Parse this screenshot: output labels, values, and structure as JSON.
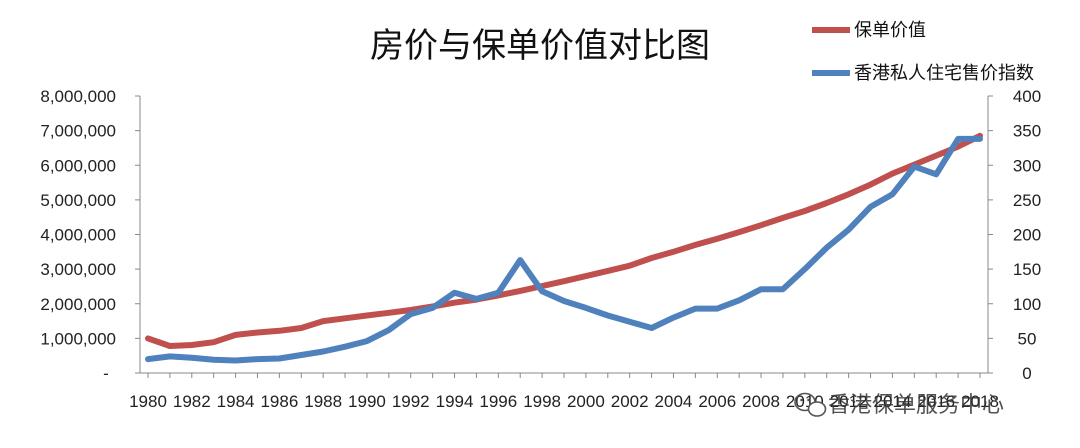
{
  "chart_data": {
    "type": "line",
    "title": "房价与保单价值对比图",
    "x": [
      1980,
      1981,
      1982,
      1983,
      1984,
      1985,
      1986,
      1987,
      1988,
      1989,
      1990,
      1991,
      1992,
      1993,
      1994,
      1995,
      1996,
      1997,
      1998,
      1999,
      2000,
      2001,
      2002,
      2003,
      2004,
      2005,
      2006,
      2007,
      2008,
      2009,
      2010,
      2011,
      2012,
      2013,
      2014,
      2015,
      2016,
      2017,
      2018
    ],
    "x_tick_labels": [
      "1980",
      "1982",
      "1984",
      "1986",
      "1988",
      "1990",
      "1992",
      "1994",
      "1996",
      "1998",
      "2000",
      "2002",
      "2004",
      "2006",
      "2008",
      "2010",
      "2012",
      "2014",
      "2016",
      "2018"
    ],
    "y_left": {
      "range": [
        0,
        8000000
      ],
      "tick_labels": [
        "-",
        "1,000,000",
        "2,000,000",
        "3,000,000",
        "4,000,000",
        "5,000,000",
        "6,000,000",
        "7,000,000",
        "8,000,000"
      ]
    },
    "y_right": {
      "range": [
        0,
        400
      ],
      "tick_labels": [
        "0",
        "50",
        "100",
        "150",
        "200",
        "250",
        "300",
        "350",
        "400"
      ]
    },
    "series": [
      {
        "name": "保单价值",
        "axis": "left",
        "color": "#C0504D",
        "values": [
          1000000,
          780000,
          810000,
          890000,
          1100000,
          1170000,
          1220000,
          1300000,
          1500000,
          1580000,
          1660000,
          1740000,
          1820000,
          1920000,
          2030000,
          2120000,
          2240000,
          2370000,
          2510000,
          2650000,
          2800000,
          2950000,
          3100000,
          3320000,
          3500000,
          3700000,
          3880000,
          4070000,
          4270000,
          4480000,
          4680000,
          4910000,
          5160000,
          5440000,
          5760000,
          6020000,
          6280000,
          6540000,
          6850000
        ]
      },
      {
        "name": "香港私人住宅售价指数",
        "axis": "right",
        "color": "#4F81BD",
        "values": [
          20,
          24,
          22,
          19,
          18,
          20,
          21,
          26,
          31,
          38,
          46,
          62,
          85,
          94,
          116,
          107,
          116,
          163,
          118,
          104,
          94,
          83,
          74,
          65,
          80,
          93,
          93,
          105,
          121,
          121,
          150,
          181,
          207,
          240,
          258,
          298,
          287,
          338,
          338
        ]
      }
    ],
    "grid": false,
    "legend_position": "top-right"
  },
  "watermark": {
    "text": "香港保单服务中心",
    "icon": "wechat-icon"
  }
}
